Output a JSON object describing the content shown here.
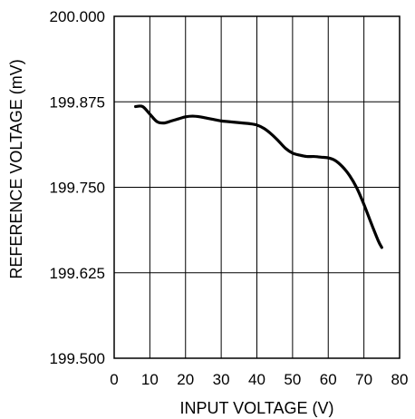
{
  "chart_data": {
    "type": "line",
    "title": "",
    "xlabel": "INPUT VOLTAGE (V)",
    "ylabel": "REFERENCE VOLTAGE (mV)",
    "xlim": [
      0,
      80
    ],
    "ylim": [
      199.5,
      200.0
    ],
    "x_ticks": [
      "0",
      "10",
      "20",
      "30",
      "40",
      "50",
      "60",
      "70",
      "80"
    ],
    "y_ticks": [
      "199.500",
      "199.625",
      "199.750",
      "199.875",
      "200.000"
    ],
    "grid": true,
    "series": [
      {
        "color": "#000000",
        "x": [
          6,
          8,
          10,
          12,
          14,
          16,
          18,
          20,
          22,
          24,
          26,
          28,
          30,
          32,
          34,
          36,
          38,
          40,
          42,
          44,
          46,
          48,
          50,
          52,
          54,
          56,
          58,
          60,
          62,
          64,
          66,
          68,
          70,
          72,
          74,
          75
        ],
        "y": [
          199.868,
          199.868,
          199.857,
          199.846,
          199.844,
          199.847,
          199.85,
          199.853,
          199.854,
          199.853,
          199.851,
          199.849,
          199.847,
          199.846,
          199.845,
          199.844,
          199.843,
          199.841,
          199.836,
          199.828,
          199.818,
          199.807,
          199.8,
          199.797,
          199.795,
          199.795,
          199.794,
          199.793,
          199.789,
          199.78,
          199.767,
          199.749,
          199.725,
          199.698,
          199.672,
          199.662
        ]
      }
    ]
  }
}
